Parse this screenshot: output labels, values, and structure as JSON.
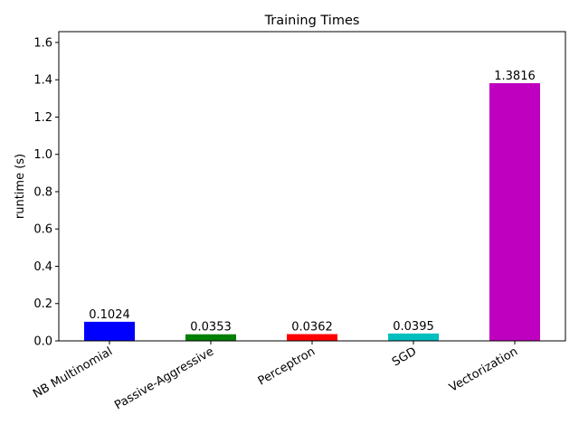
{
  "chart_data": {
    "type": "bar",
    "title": "Training Times",
    "ylabel": "runtime (s)",
    "categories": [
      "NB Multinomial",
      "Passive-Aggressive",
      "Perceptron",
      "SGD",
      "Vectorization"
    ],
    "values": [
      0.1024,
      0.0353,
      0.0362,
      0.0395,
      1.3816
    ],
    "colors": [
      "#0000ff",
      "#008000",
      "#ff0000",
      "#00bfbf",
      "#bf00bf"
    ],
    "ylim": [
      0,
      1.658
    ],
    "yticks": [
      {
        "value": 0,
        "label": "0.0"
      },
      0.2,
      0.4,
      0.6,
      0.8,
      {
        "value": 1,
        "label": "1.0"
      },
      1.2,
      1.4,
      1.6
    ],
    "grid": false
  }
}
